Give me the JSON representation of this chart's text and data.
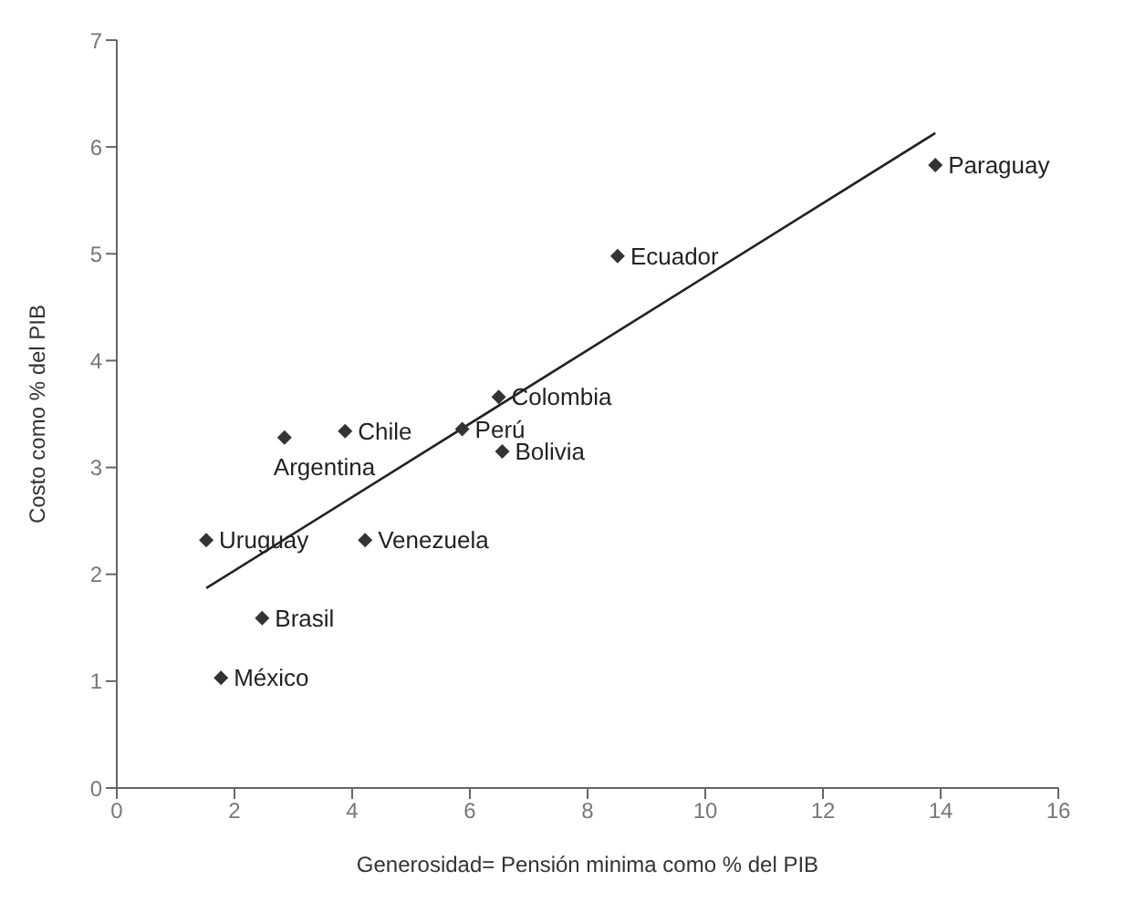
{
  "chart_data": {
    "type": "scatter",
    "xlabel": "Generosidad= Pensión minima como % del PIB",
    "ylabel": "Costo como % del PIB",
    "xlim": [
      0,
      16
    ],
    "xticks": [
      0,
      2,
      4,
      6,
      8,
      10,
      12,
      14,
      16
    ],
    "ylim": [
      0,
      7
    ],
    "yticks": [
      0,
      1,
      2,
      3,
      4,
      5,
      6,
      7
    ],
    "marker": "diamond",
    "series": [
      {
        "color": "#333333",
        "x": [
          13.91,
          8.51,
          6.49,
          5.87,
          3.88,
          2.85,
          6.55,
          1.52,
          4.22,
          2.47,
          1.77
        ],
        "values": [
          5.83,
          4.98,
          3.66,
          3.36,
          3.34,
          3.28,
          3.15,
          2.32,
          2.32,
          1.59,
          1.03
        ]
      },
      {
        "type": "line",
        "marker": "none",
        "color": "#222222",
        "x": [
          1.52,
          13.91
        ],
        "values": [
          1.87,
          6.13
        ]
      }
    ],
    "annotations": [
      {
        "text": "Paraguay",
        "x": 13.91,
        "y": 5.83
      },
      {
        "text": "Ecuador",
        "x": 8.51,
        "y": 4.98
      },
      {
        "text": "Colombia",
        "x": 6.49,
        "y": 3.66
      },
      {
        "text": "Perú",
        "x": 5.87,
        "y": 3.36
      },
      {
        "text": "Chile",
        "x": 3.88,
        "y": 3.34
      },
      {
        "text": "Argentina",
        "x": 2.85,
        "y": 3.28
      },
      {
        "text": "Bolivia",
        "x": 6.55,
        "y": 3.15
      },
      {
        "text": "Uruguay",
        "x": 1.52,
        "y": 2.32
      },
      {
        "text": "Venezuela",
        "x": 4.22,
        "y": 2.32
      },
      {
        "text": "Brasil",
        "x": 2.47,
        "y": 1.59
      },
      {
        "text": "México",
        "x": 1.77,
        "y": 1.03
      }
    ]
  }
}
